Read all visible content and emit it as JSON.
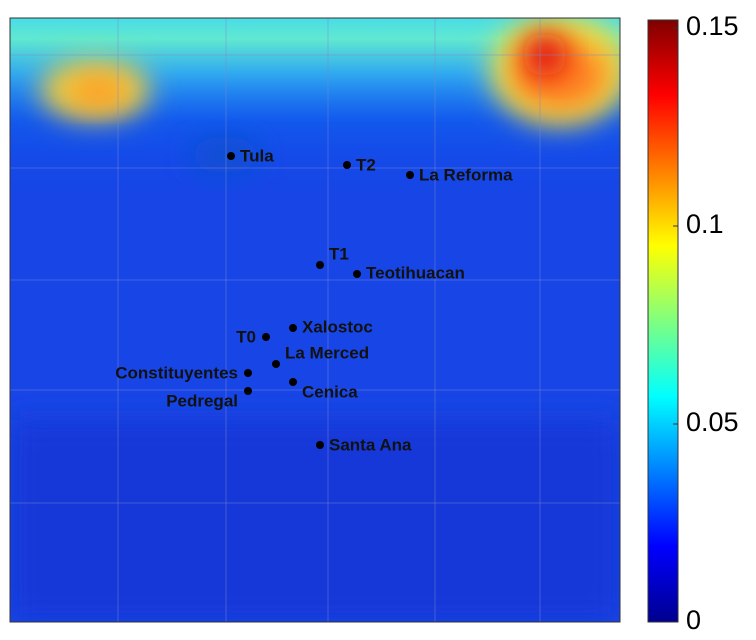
{
  "map": {
    "stations": [
      "Tula",
      "T2",
      "La Reforma",
      "T1",
      "Teotihuacan",
      "T0",
      "Xalostoc",
      "La Merced",
      "Constituyentes",
      "Cenica",
      "Pedregal",
      "Santa Ana"
    ],
    "colorbar": {
      "lim": [
        0,
        0.15
      ],
      "ticks": [
        0,
        0.05,
        0.1,
        0.15
      ]
    }
  }
}
